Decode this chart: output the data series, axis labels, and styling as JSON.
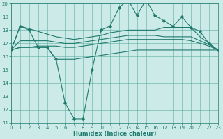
{
  "x": [
    0,
    1,
    2,
    3,
    4,
    5,
    6,
    7,
    8,
    9,
    10,
    11,
    12,
    13,
    14,
    15,
    16,
    17,
    18,
    19,
    20,
    21,
    22,
    23
  ],
  "line_main": [
    16.5,
    18.3,
    18.0,
    16.7,
    16.7,
    15.8,
    12.5,
    11.3,
    11.3,
    15.0,
    18.0,
    18.3,
    19.7,
    20.3,
    19.1,
    20.3,
    19.1,
    18.7,
    18.3,
    19.0,
    18.2,
    17.9,
    17.0,
    16.5
  ],
  "line_upper": [
    16.5,
    18.3,
    18.1,
    17.9,
    17.7,
    17.5,
    17.4,
    17.3,
    17.4,
    17.5,
    17.6,
    17.8,
    17.9,
    18.0,
    18.0,
    18.0,
    18.0,
    18.2,
    18.2,
    18.2,
    18.2,
    17.5,
    17.0,
    16.5
  ],
  "line_mid_upper": [
    16.5,
    17.2,
    17.2,
    17.2,
    17.2,
    17.1,
    17.0,
    17.0,
    17.1,
    17.2,
    17.3,
    17.4,
    17.5,
    17.6,
    17.6,
    17.6,
    17.6,
    17.5,
    17.5,
    17.5,
    17.5,
    17.2,
    16.9,
    16.5
  ],
  "line_mid_lower": [
    16.5,
    16.7,
    16.7,
    16.8,
    16.8,
    16.8,
    16.7,
    16.7,
    16.8,
    16.9,
    17.0,
    17.1,
    17.2,
    17.3,
    17.3,
    17.3,
    17.3,
    17.3,
    17.3,
    17.3,
    17.2,
    17.0,
    16.8,
    16.5
  ],
  "line_lower": [
    16.5,
    16.7,
    16.7,
    16.7,
    16.7,
    15.8,
    15.8,
    15.8,
    15.9,
    16.0,
    16.1,
    16.2,
    16.3,
    16.4,
    16.5,
    16.5,
    16.5,
    16.5,
    16.5,
    16.5,
    16.5,
    16.5,
    16.5,
    16.5
  ],
  "color": "#1f7a6e",
  "bg_color": "#cceae8",
  "grid_color": "#5aada0",
  "xlabel": "Humidex (Indice chaleur)",
  "ylim": [
    11,
    20
  ],
  "xlim": [
    0,
    23
  ],
  "yticks": [
    11,
    12,
    13,
    14,
    15,
    16,
    17,
    18,
    19,
    20
  ],
  "xticks": [
    0,
    1,
    2,
    3,
    4,
    5,
    6,
    7,
    8,
    9,
    10,
    11,
    12,
    13,
    14,
    15,
    16,
    17,
    18,
    19,
    20,
    21,
    22,
    23
  ]
}
